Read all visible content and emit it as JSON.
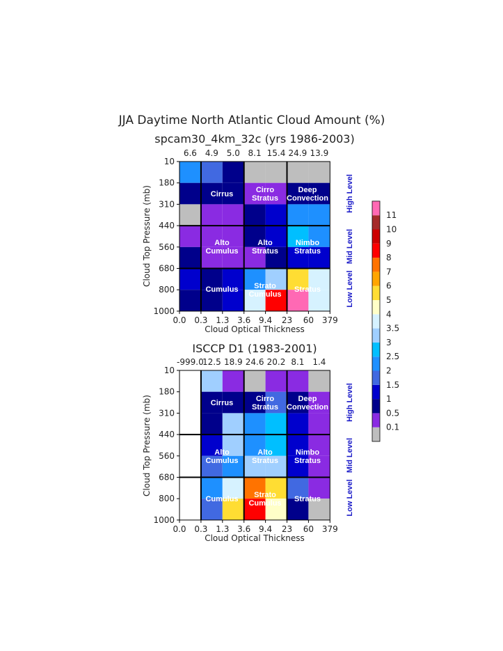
{
  "header": {
    "title": "JJA Daytime North Atlantic Cloud Amount (%)"
  },
  "axes": {
    "x_ticks": [
      "0.0",
      "0.3",
      "1.3",
      "3.6",
      "9.4",
      "23",
      "60",
      "379"
    ],
    "y_ticks": [
      "10",
      "180",
      "310",
      "440",
      "560",
      "680",
      "800",
      "1000"
    ],
    "xlabel": "Cloud Optical Thickness",
    "ylabel": "Cloud Top Pressure (mb)"
  },
  "level_labels": [
    "High Level",
    "Mid Level",
    "Low Level"
  ],
  "cloud_types": {
    "high": [
      "Cirrus",
      "Cirro Stratus",
      "Deep Convection"
    ],
    "mid": [
      "Alto Cumulus",
      "Alto Stratus",
      "Nimbo Stratus"
    ],
    "low": [
      "Cumulus",
      "Strato Cumulus",
      "Stratus"
    ]
  },
  "colorbar": {
    "labels": [
      "0.1",
      "0.5",
      "1",
      "1.5",
      "2",
      "2.5",
      "3",
      "3.5",
      "4",
      "5",
      "6",
      "7",
      "8",
      "9",
      "10",
      "11"
    ],
    "colors": [
      "#bebebe",
      "#8a2be2",
      "#00008b",
      "#0000cd",
      "#4169e1",
      "#1e90ff",
      "#00bfff",
      "#a0cfff",
      "#d6f2ff",
      "#ffffc8",
      "#ffdd33",
      "#ffa500",
      "#ff7300",
      "#ff0000",
      "#cd0000",
      "#a52a2a",
      "#ff69b4"
    ]
  },
  "chart_data": [
    {
      "type": "heatmap",
      "title": "spcam30_4km_32c (yrs 1986-2003)",
      "column_totals": [
        "6.6",
        "4.9",
        "5.0",
        "8.1",
        "15.4",
        "24.9",
        "13.9"
      ],
      "x": [
        "0.0-0.3",
        "0.3-1.3",
        "1.3-3.6",
        "3.6-9.4",
        "9.4-23",
        "23-60",
        "60-379"
      ],
      "y": [
        "10-180",
        "180-310",
        "310-440",
        "440-560",
        "560-680",
        "680-800",
        "800-1000"
      ],
      "cell_color_index": [
        [
          5,
          4,
          2,
          0,
          0,
          0,
          0
        ],
        [
          2,
          2,
          2,
          1,
          1,
          2,
          2
        ],
        [
          0,
          1,
          1,
          2,
          3,
          5,
          5
        ],
        [
          1,
          1,
          1,
          2,
          3,
          6,
          5
        ],
        [
          2,
          1,
          1,
          1,
          2,
          3,
          3
        ],
        [
          3,
          2,
          3,
          5,
          7,
          10,
          8
        ],
        [
          2,
          2,
          3,
          8,
          13,
          16,
          8
        ]
      ],
      "xlabel": "Cloud Optical Thickness",
      "ylabel": "Cloud Top Pressure (mb)"
    },
    {
      "type": "heatmap",
      "title": "ISCCP D1 (1983-2001)",
      "column_totals": [
        "-999.0",
        "12.5",
        "18.9",
        "24.6",
        "20.2",
        "8.1",
        "1.4"
      ],
      "x": [
        "0.0-0.3",
        "0.3-1.3",
        "1.3-3.6",
        "3.6-9.4",
        "9.4-23",
        "23-60",
        "60-379"
      ],
      "y": [
        "10-180",
        "180-310",
        "310-440",
        "440-560",
        "560-680",
        "680-800",
        "800-1000"
      ],
      "cell_color_index": [
        [
          -1,
          7,
          1,
          0,
          1,
          1,
          0
        ],
        [
          -1,
          2,
          2,
          2,
          4,
          2,
          1
        ],
        [
          -1,
          2,
          7,
          5,
          6,
          3,
          1
        ],
        [
          -1,
          3,
          7,
          5,
          6,
          3,
          1
        ],
        [
          -1,
          4,
          5,
          7,
          7,
          3,
          1
        ],
        [
          -1,
          5,
          8,
          12,
          10,
          4,
          1
        ],
        [
          -1,
          4,
          10,
          13,
          9,
          2,
          0
        ]
      ],
      "xlabel": "Cloud Optical Thickness",
      "ylabel": "Cloud Top Pressure (mb)"
    }
  ]
}
